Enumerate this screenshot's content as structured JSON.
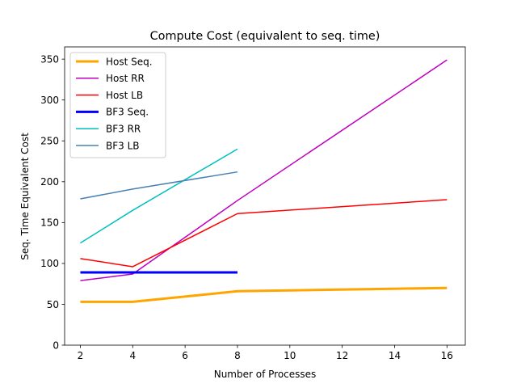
{
  "chart_data": {
    "type": "line",
    "title": "Compute Cost (equivalent to seq. time)",
    "xlabel": "Number of Processes",
    "ylabel": "Seq. Time Equivalent Cost",
    "xlim": [
      1.4,
      16.7
    ],
    "ylim": [
      0,
      365
    ],
    "xticks": [
      2,
      4,
      6,
      8,
      10,
      12,
      14,
      16
    ],
    "yticks": [
      0,
      50,
      100,
      150,
      200,
      250,
      300,
      350
    ],
    "grid": false,
    "legend_position": "top-left",
    "series": [
      {
        "name": "Host Seq.",
        "color": "#ffa500",
        "width": 3,
        "x": [
          2,
          4,
          8,
          16
        ],
        "y": [
          53,
          53,
          66,
          70
        ]
      },
      {
        "name": "Host RR",
        "color": "#bf00bf",
        "width": 1.5,
        "x": [
          2,
          4,
          8,
          16
        ],
        "y": [
          79,
          87,
          177,
          349
        ]
      },
      {
        "name": "Host LB",
        "color": "#ff0000",
        "width": 1.5,
        "x": [
          2,
          4,
          8,
          16
        ],
        "y": [
          106,
          96,
          161,
          178
        ]
      },
      {
        "name": "BF3 Seq.",
        "color": "#0000ff",
        "width": 3,
        "x": [
          2,
          4,
          8
        ],
        "y": [
          89,
          89,
          89
        ]
      },
      {
        "name": "BF3 RR",
        "color": "#00bfbf",
        "width": 1.5,
        "x": [
          2,
          4,
          8
        ],
        "y": [
          125,
          165,
          240
        ]
      },
      {
        "name": "BF3 LB",
        "color": "#4682b4",
        "width": 1.5,
        "x": [
          2,
          4,
          8
        ],
        "y": [
          179,
          191,
          212
        ]
      }
    ]
  }
}
